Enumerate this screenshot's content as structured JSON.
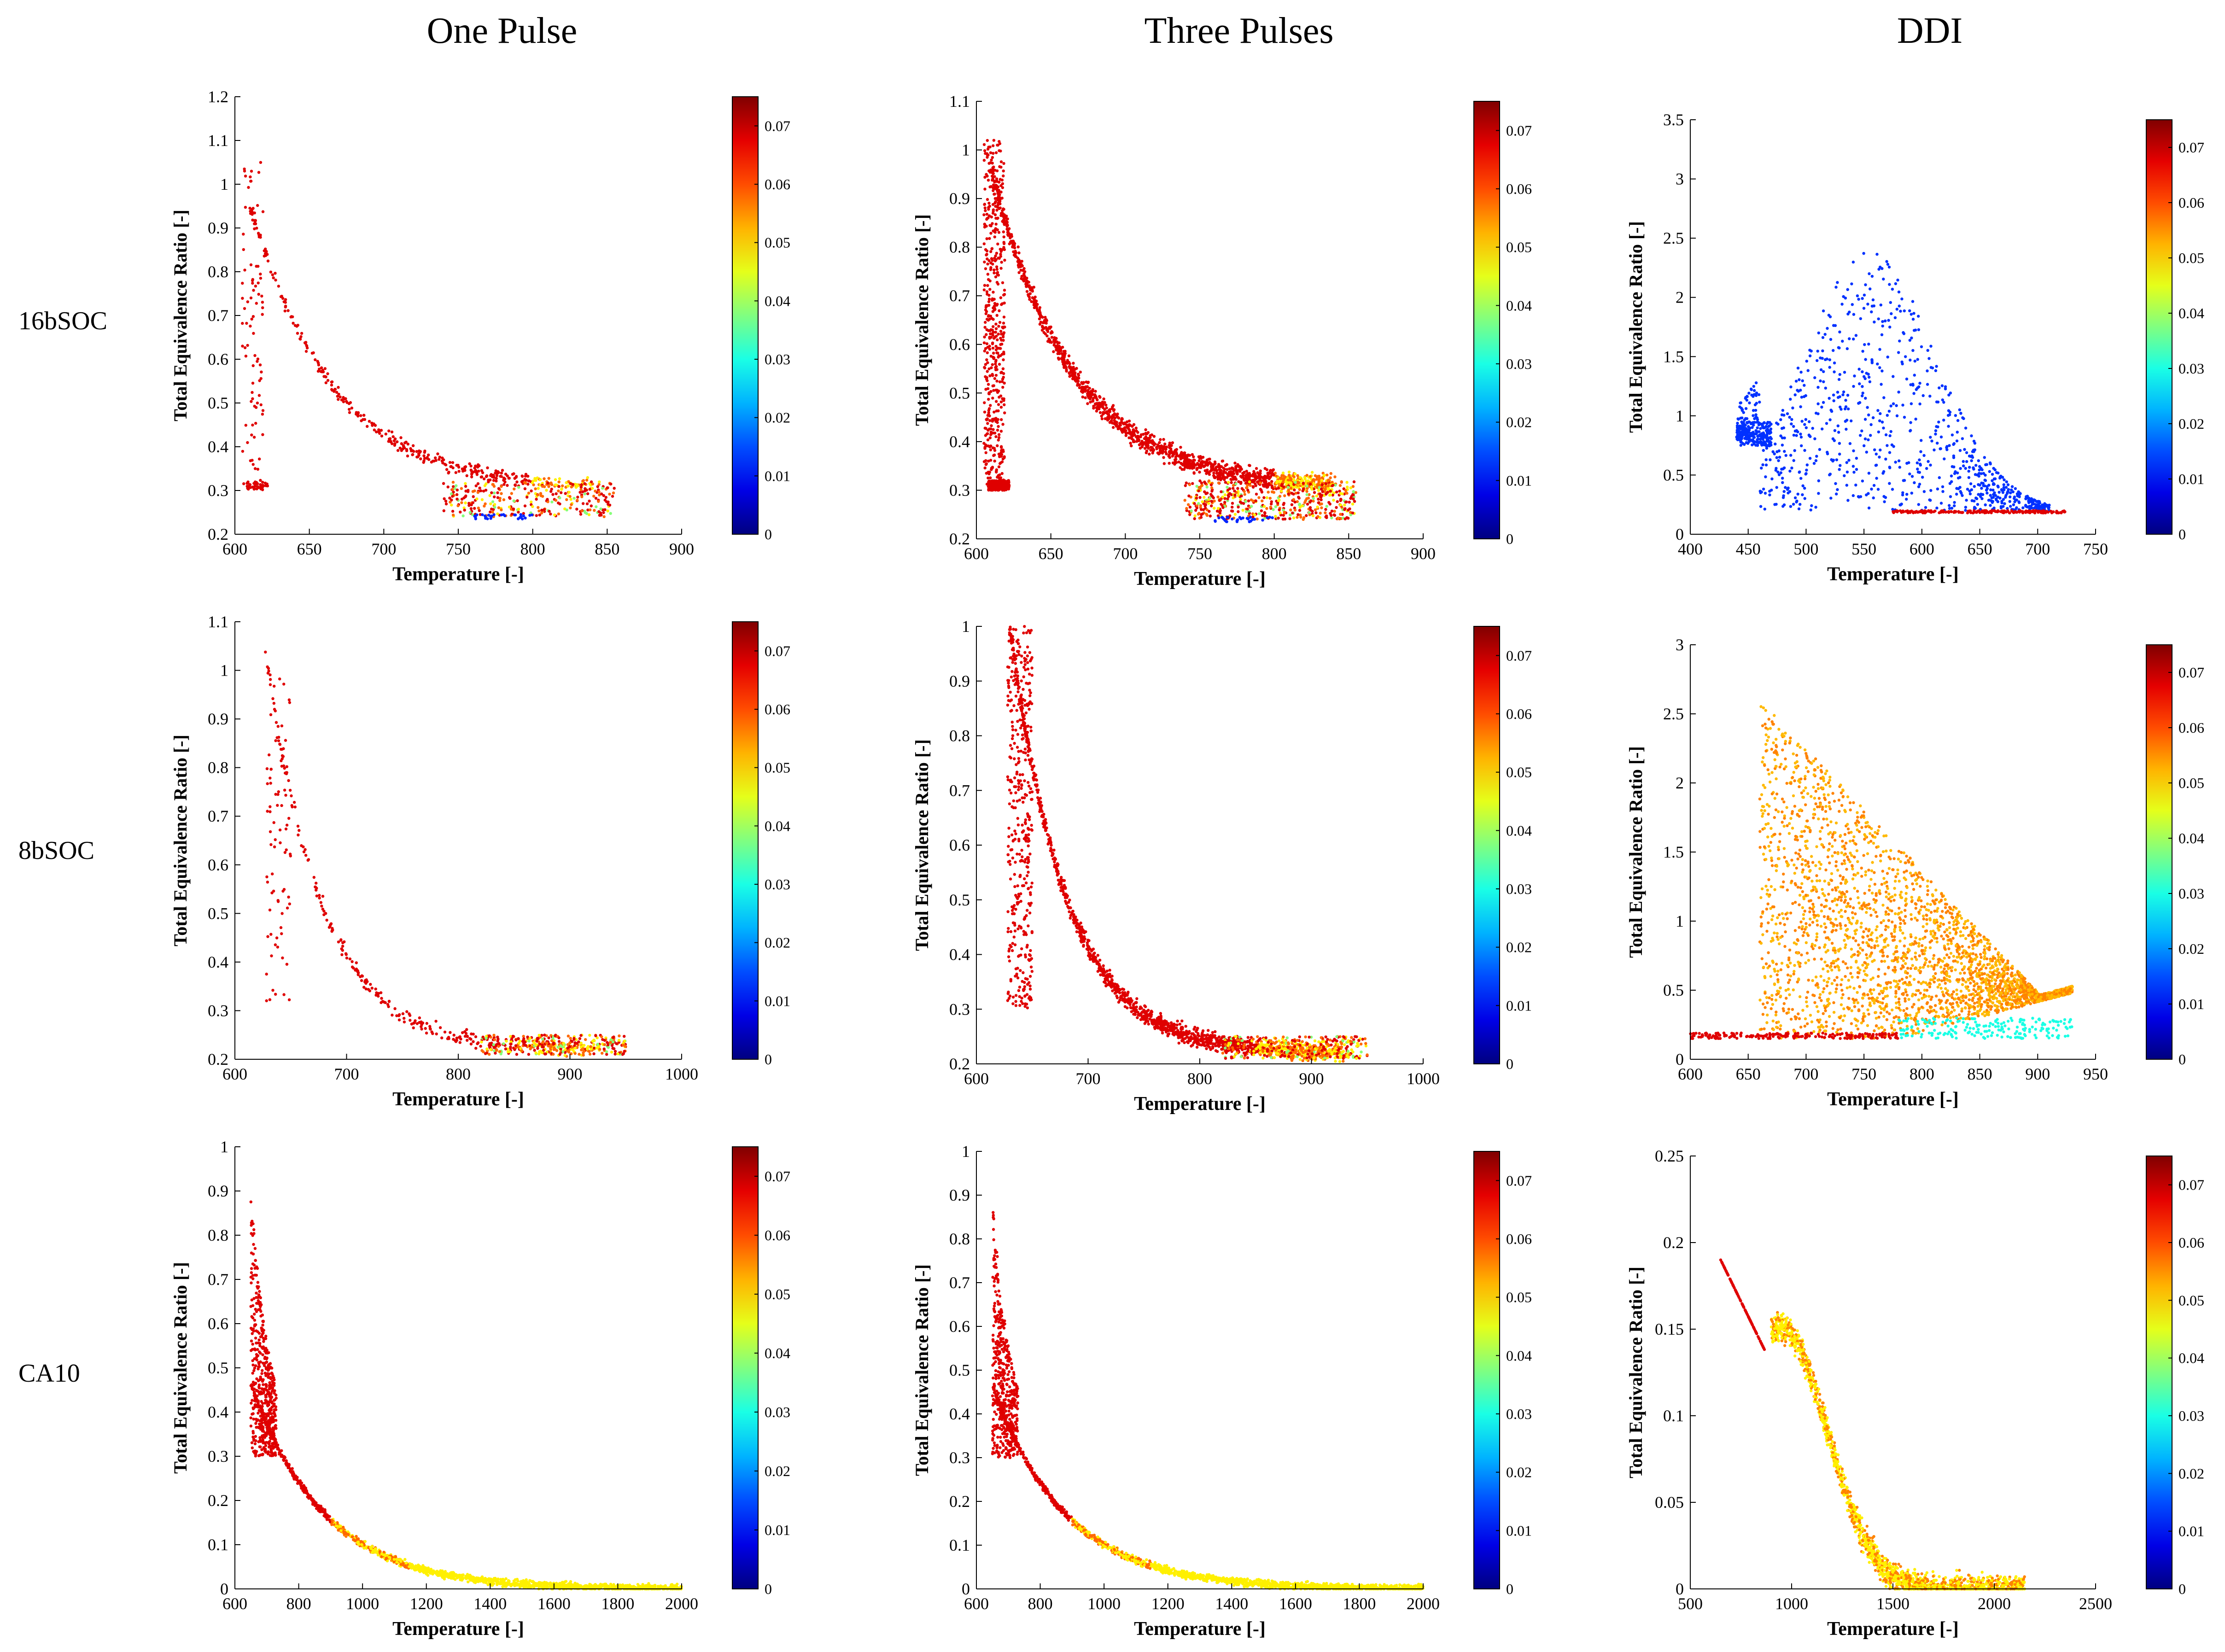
{
  "columns": [
    "One Pulse",
    "Three Pulses",
    "DDI"
  ],
  "rows": [
    "16bSOC",
    "8bSOC",
    "CA10"
  ],
  "chart_data": [
    {
      "id": "p11",
      "type": "scatter",
      "col": 0,
      "row": 0,
      "xlabel": "Temperature [-]",
      "ylabel": "Total Equivalence Ratio [-]",
      "xlim": [
        600,
        900
      ],
      "ylim": [
        0.2,
        1.2
      ],
      "xticks": [
        "600",
        "650",
        "700",
        "750",
        "800",
        "850",
        "900"
      ],
      "yticks": [
        "0.2",
        "0.3",
        "0.4",
        "0.5",
        "0.6",
        "0.7",
        "0.8",
        "0.9",
        "1",
        "1.1",
        "1.2"
      ],
      "colorbar": {
        "min": 0,
        "max": 0.075,
        "ticks": [
          "0",
          "0.01",
          "0.02",
          "0.03",
          "0.04",
          "0.05",
          "0.06",
          "0.07"
        ]
      },
      "pattern": "single"
    },
    {
      "id": "p12",
      "type": "scatter",
      "col": 1,
      "row": 0,
      "xlabel": "Temperature [-]",
      "ylabel": "Total Equivalence Ratio [-]",
      "xlim": [
        600,
        900
      ],
      "ylim": [
        0.2,
        1.1
      ],
      "xticks": [
        "600",
        "650",
        "700",
        "750",
        "800",
        "850",
        "900"
      ],
      "yticks": [
        "0.2",
        "0.3",
        "0.4",
        "0.5",
        "0.6",
        "0.7",
        "0.8",
        "0.9",
        "1",
        "1.1"
      ],
      "colorbar": {
        "min": 0,
        "max": 0.075,
        "ticks": [
          "0",
          "0.01",
          "0.02",
          "0.03",
          "0.04",
          "0.05",
          "0.06",
          "0.07"
        ]
      },
      "pattern": "triple"
    },
    {
      "id": "p13",
      "type": "scatter",
      "col": 2,
      "row": 0,
      "xlabel": "Temperature [-]",
      "ylabel": "Total Equivalence Ratio [-]",
      "xlim": [
        400,
        750
      ],
      "ylim": [
        0,
        3.5
      ],
      "xticks": [
        "400",
        "450",
        "500",
        "550",
        "600",
        "650",
        "700",
        "750"
      ],
      "yticks": [
        "0",
        "0.5",
        "1",
        "1.5",
        "2",
        "2.5",
        "3",
        "3.5"
      ],
      "colorbar": {
        "min": 0,
        "max": 0.075,
        "ticks": [
          "0",
          "0.01",
          "0.02",
          "0.03",
          "0.04",
          "0.05",
          "0.06",
          "0.07"
        ]
      },
      "pattern": "ddi16"
    },
    {
      "id": "p21",
      "type": "scatter",
      "col": 0,
      "row": 1,
      "xlabel": "Temperature [-]",
      "ylabel": "Total Equivalence Ratio [-]",
      "xlim": [
        600,
        1000
      ],
      "ylim": [
        0.2,
        1.1
      ],
      "xticks": [
        "600",
        "700",
        "800",
        "900",
        "1000"
      ],
      "yticks": [
        "0.2",
        "0.3",
        "0.4",
        "0.5",
        "0.6",
        "0.7",
        "0.8",
        "0.9",
        "1",
        "1.1"
      ],
      "colorbar": {
        "min": 0,
        "max": 0.075,
        "ticks": [
          "0",
          "0.01",
          "0.02",
          "0.03",
          "0.04",
          "0.05",
          "0.06",
          "0.07"
        ]
      },
      "pattern": "single8"
    },
    {
      "id": "p22",
      "type": "scatter",
      "col": 1,
      "row": 1,
      "xlabel": "Temperature [-]",
      "ylabel": "Total Equivalence Ratio [-]",
      "xlim": [
        600,
        1000
      ],
      "ylim": [
        0.2,
        1
      ],
      "xticks": [
        "600",
        "700",
        "800",
        "900",
        "1000"
      ],
      "yticks": [
        "0.2",
        "0.3",
        "0.4",
        "0.5",
        "0.6",
        "0.7",
        "0.8",
        "0.9",
        "1"
      ],
      "colorbar": {
        "min": 0,
        "max": 0.075,
        "ticks": [
          "0",
          "0.01",
          "0.02",
          "0.03",
          "0.04",
          "0.05",
          "0.06",
          "0.07"
        ]
      },
      "pattern": "triple8"
    },
    {
      "id": "p23",
      "type": "scatter",
      "col": 2,
      "row": 1,
      "xlabel": "Temperature [-]",
      "ylabel": "Total Equivalence Ratio [-]",
      "xlim": [
        600,
        950
      ],
      "ylim": [
        0,
        3
      ],
      "xticks": [
        "600",
        "650",
        "700",
        "750",
        "800",
        "850",
        "900",
        "950"
      ],
      "yticks": [
        "0",
        "0.5",
        "1",
        "1.5",
        "2",
        "2.5",
        "3"
      ],
      "colorbar": {
        "min": 0,
        "max": 0.075,
        "ticks": [
          "0",
          "0.01",
          "0.02",
          "0.03",
          "0.04",
          "0.05",
          "0.06",
          "0.07"
        ]
      },
      "pattern": "ddi8"
    },
    {
      "id": "p31",
      "type": "scatter",
      "col": 0,
      "row": 2,
      "xlabel": "Temperature [-]",
      "ylabel": "Total Equivalence Ratio [-]",
      "xlim": [
        600,
        2000
      ],
      "ylim": [
        0,
        1
      ],
      "xticks": [
        "600",
        "800",
        "1000",
        "1200",
        "1400",
        "1600",
        "1800",
        "2000"
      ],
      "yticks": [
        "0",
        "0.1",
        "0.2",
        "0.3",
        "0.4",
        "0.5",
        "0.6",
        "0.7",
        "0.8",
        "0.9",
        "1"
      ],
      "colorbar": {
        "min": 0,
        "max": 0.075,
        "ticks": [
          "0",
          "0.01",
          "0.02",
          "0.03",
          "0.04",
          "0.05",
          "0.06",
          "0.07"
        ]
      },
      "pattern": "ca10"
    },
    {
      "id": "p32",
      "type": "scatter",
      "col": 1,
      "row": 2,
      "xlabel": "Temperature [-]",
      "ylabel": "Total Equivalence Ratio [-]",
      "xlim": [
        600,
        2000
      ],
      "ylim": [
        0,
        1
      ],
      "xticks": [
        "600",
        "800",
        "1000",
        "1200",
        "1400",
        "1600",
        "1800",
        "2000"
      ],
      "yticks": [
        "0",
        "0.1",
        "0.2",
        "0.3",
        "0.4",
        "0.5",
        "0.6",
        "0.7",
        "0.8",
        "0.9",
        "1"
      ],
      "colorbar": {
        "min": 0,
        "max": 0.075,
        "ticks": [
          "0",
          "0.01",
          "0.02",
          "0.03",
          "0.04",
          "0.05",
          "0.06",
          "0.07"
        ]
      },
      "pattern": "ca10b"
    },
    {
      "id": "p33",
      "type": "scatter",
      "col": 2,
      "row": 2,
      "xlabel": "Temperature [-]",
      "ylabel": "Total Equivalence Ratio [-]",
      "xlim": [
        500,
        2500
      ],
      "ylim": [
        0,
        0.25
      ],
      "xticks": [
        "500",
        "1000",
        "1500",
        "2000",
        "2500"
      ],
      "yticks": [
        "0",
        "0.05",
        "0.1",
        "0.15",
        "0.2",
        "0.25"
      ],
      "colorbar": {
        "min": 0,
        "max": 0.075,
        "ticks": [
          "0",
          "0.01",
          "0.02",
          "0.03",
          "0.04",
          "0.05",
          "0.06",
          "0.07"
        ]
      },
      "pattern": "ddica10"
    }
  ]
}
